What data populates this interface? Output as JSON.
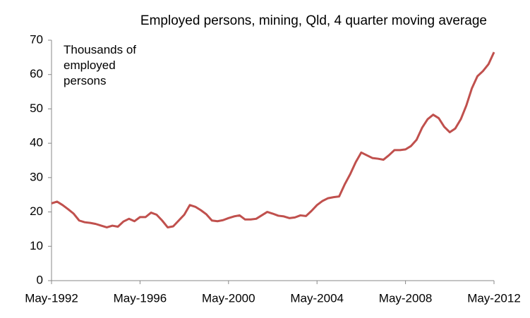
{
  "chart_data": {
    "type": "line",
    "title": "Employed persons, mining, Qld, 4 quarter moving average",
    "ylabel": "Thousands of employed persons",
    "categories": [
      "May-1992",
      null,
      null,
      null,
      null,
      null,
      null,
      null,
      null,
      null,
      null,
      null,
      null,
      null,
      null,
      null,
      "May-1996",
      null,
      null,
      null,
      null,
      null,
      null,
      null,
      null,
      null,
      null,
      null,
      null,
      null,
      null,
      null,
      "May-2000",
      null,
      null,
      null,
      null,
      null,
      null,
      null,
      null,
      null,
      null,
      null,
      null,
      null,
      null,
      null,
      "May-2004",
      null,
      null,
      null,
      null,
      null,
      null,
      null,
      null,
      null,
      null,
      null,
      null,
      null,
      null,
      null,
      "May-2008",
      null,
      null,
      null,
      null,
      null,
      null,
      null,
      null,
      null,
      null,
      null,
      null,
      null,
      null,
      null,
      "May-2012"
    ],
    "series": [
      {
        "name": "Employed persons, mining, Qld",
        "color": "#c0504d",
        "values": [
          22.5,
          23,
          22,
          20.8,
          19.5,
          17.5,
          17,
          16.8,
          16.5,
          16,
          15.5,
          16,
          15.7,
          17.2,
          18,
          17.3,
          18.5,
          18.5,
          19.8,
          19.2,
          17.5,
          15.5,
          15.8,
          17.5,
          19.2,
          22,
          21.5,
          20.5,
          19.3,
          17.5,
          17.3,
          17.6,
          18.2,
          18.7,
          19,
          17.8,
          17.8,
          18,
          19,
          20,
          19.5,
          18.9,
          18.7,
          18.2,
          18.4,
          19,
          18.8,
          20.3,
          22,
          23.2,
          24,
          24.3,
          24.5,
          28,
          31,
          34.5,
          37.3,
          36.5,
          35.7,
          35.5,
          35.2,
          36.5,
          38,
          38,
          38.2,
          39.2,
          41,
          44.5,
          47,
          48.3,
          47.3,
          44.8,
          43.2,
          44.3,
          47,
          51,
          56,
          59.5,
          61,
          63,
          66.5
        ]
      }
    ],
    "ylim": [
      0,
      70
    ],
    "yticks": [
      0,
      10,
      20,
      30,
      40,
      50,
      60,
      70
    ],
    "grid": false
  }
}
